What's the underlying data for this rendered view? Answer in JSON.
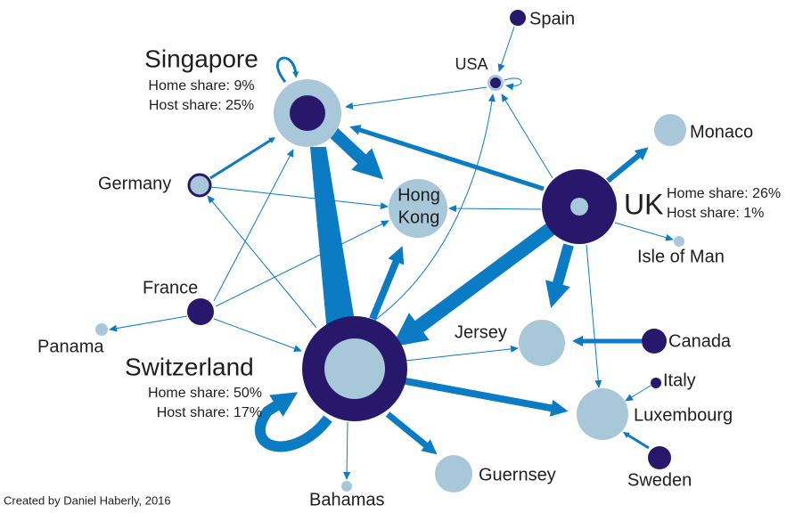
{
  "nodes": [
    {
      "label": "Singapore",
      "home_share": "Home share: 9%",
      "host_share": "Host share: 25%"
    },
    {
      "label": "USA"
    },
    {
      "label": "Spain"
    },
    {
      "label": "Monaco"
    },
    {
      "label": "UK",
      "home_share": "Home share: 26%",
      "host_share": "Host share: 1%"
    },
    {
      "label": "Isle of Man"
    },
    {
      "label": "Germany"
    },
    {
      "label_lines": [
        "Hong",
        "Kong"
      ]
    },
    {
      "label": "France"
    },
    {
      "label": "Panama"
    },
    {
      "label": "Switzerland",
      "home_share": "Home share: 50%",
      "host_share": "Host share: 17%"
    },
    {
      "label": "Jersey"
    },
    {
      "label": "Canada"
    },
    {
      "label": "Italy"
    },
    {
      "label": "Luxembourg"
    },
    {
      "label": "Sweden"
    },
    {
      "label": "Guernsey"
    },
    {
      "label": "Bahamas"
    }
  ],
  "credit": "Created by Daniel Haberly, 2016"
}
